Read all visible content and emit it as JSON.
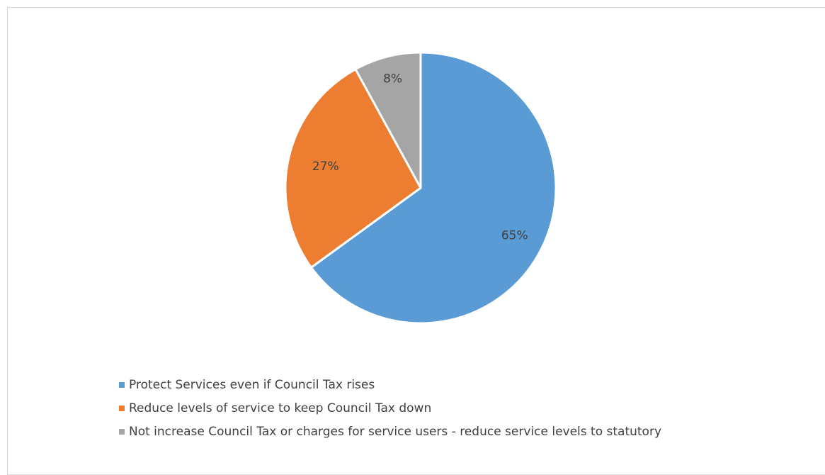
{
  "chart_data": {
    "type": "pie",
    "title": "",
    "legend_position": "bottom-left",
    "slices": [
      {
        "name": "Protect Services even if Council Tax rises",
        "value": 65,
        "label": "65%",
        "color": "#5b9bd5"
      },
      {
        "name": "Reduce levels of service to keep Council Tax down",
        "value": 27,
        "label": "27%",
        "color": "#ed7d31"
      },
      {
        "name": "Not increase Council Tax or charges for service users - reduce service levels to statutory",
        "value": 8,
        "label": "8%",
        "color": "#a5a5a5"
      }
    ]
  }
}
